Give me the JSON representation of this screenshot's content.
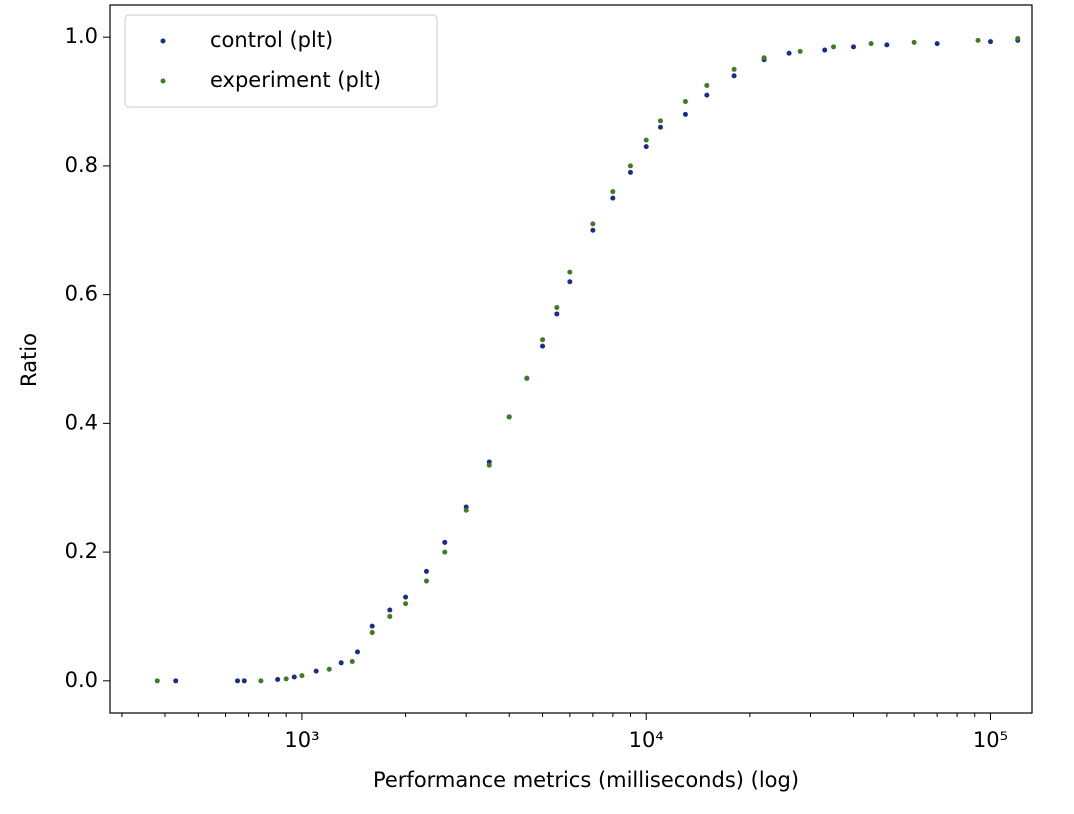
{
  "chart_data": {
    "type": "scatter",
    "xlabel": "Performance metrics (milliseconds) (log)",
    "ylabel": "Ratio",
    "xscale": "log",
    "xlim": [
      277,
      132000
    ],
    "ylim": [
      -0.05,
      1.05
    ],
    "xticks": [
      {
        "value": 1000,
        "label": "10³"
      },
      {
        "value": 10000,
        "label": "10⁴"
      },
      {
        "value": 100000,
        "label": "10⁵"
      }
    ],
    "xminorticks": [
      300,
      400,
      500,
      600,
      700,
      800,
      900,
      2000,
      3000,
      4000,
      5000,
      6000,
      7000,
      8000,
      9000,
      20000,
      30000,
      40000,
      50000,
      60000,
      70000,
      80000,
      90000
    ],
    "yticks": [
      {
        "value": 0,
        "label": "0.0"
      },
      0.2,
      0.4,
      0.6,
      0.8,
      {
        "value": 1,
        "label": "1.0"
      }
    ],
    "legend": "upper left",
    "series": [
      {
        "name": "control (plt)",
        "color": "#1b2a8e",
        "x": [
          430,
          650,
          680,
          850,
          950,
          1100,
          1300,
          1450,
          1600,
          1800,
          2000,
          2300,
          2600,
          3000,
          3500,
          4000,
          4500,
          5000,
          5500,
          6000,
          7000,
          8000,
          9000,
          10000,
          11000,
          13000,
          15000,
          18000,
          22000,
          26000,
          33000,
          40000,
          50000,
          70000,
          100000,
          120000
        ],
        "values": [
          0.0,
          0.0,
          0.0,
          0.002,
          0.006,
          0.015,
          0.028,
          0.045,
          0.085,
          0.11,
          0.13,
          0.17,
          0.215,
          0.27,
          0.34,
          0.41,
          0.47,
          0.52,
          0.57,
          0.62,
          0.7,
          0.75,
          0.79,
          0.83,
          0.86,
          0.88,
          0.91,
          0.94,
          0.965,
          0.975,
          0.98,
          0.985,
          0.988,
          0.99,
          0.993,
          0.995
        ]
      },
      {
        "name": "experiment (plt)",
        "color": "#3b7d23",
        "x": [
          380,
          760,
          900,
          1000,
          1200,
          1400,
          1600,
          1800,
          2000,
          2300,
          2600,
          3000,
          3500,
          4000,
          4500,
          5000,
          5500,
          6000,
          7000,
          8000,
          9000,
          10000,
          11000,
          13000,
          15000,
          18000,
          22000,
          28000,
          35000,
          45000,
          60000,
          92000,
          120000
        ],
        "values": [
          0.0,
          0.0,
          0.003,
          0.008,
          0.018,
          0.03,
          0.075,
          0.1,
          0.12,
          0.155,
          0.2,
          0.265,
          0.335,
          0.41,
          0.47,
          0.53,
          0.58,
          0.635,
          0.71,
          0.76,
          0.8,
          0.84,
          0.87,
          0.9,
          0.925,
          0.95,
          0.968,
          0.978,
          0.985,
          0.99,
          0.992,
          0.995,
          0.998
        ]
      }
    ]
  }
}
